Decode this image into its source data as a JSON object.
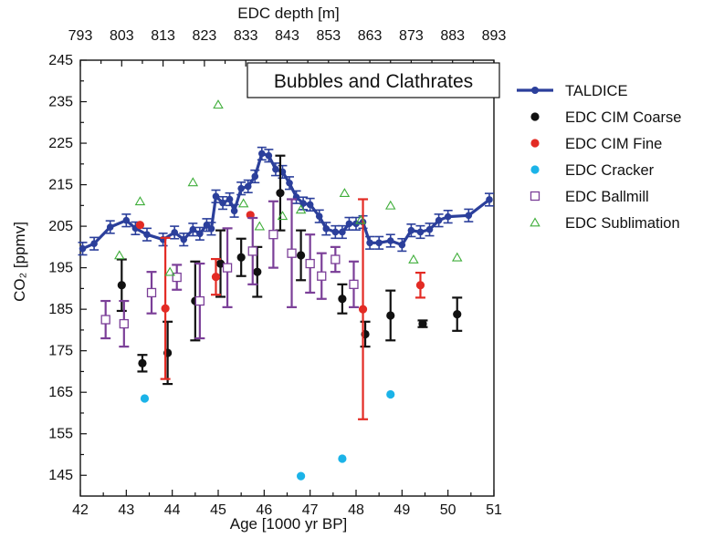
{
  "chart_data": {
    "type": "scatter",
    "title": "Bubbles and Clathrates",
    "xlabel": "Age [1000 yr BP]",
    "ylabel": "CO₂ [ppmv]",
    "x2label": "EDC depth [m]",
    "xlim": [
      42,
      51
    ],
    "ylim": [
      140,
      245
    ],
    "x_ticks": [
      "42",
      "43",
      "44",
      "45",
      "46",
      "47",
      "48",
      "49",
      "50",
      "51"
    ],
    "y_ticks": [
      "145",
      "155",
      "165",
      "175",
      "185",
      "195",
      "205",
      "215",
      "225",
      "235",
      "245"
    ],
    "x2_ticks": [
      "793",
      "803",
      "813",
      "823",
      "833",
      "843",
      "853",
      "863",
      "873",
      "883",
      "893"
    ],
    "legend_position": "right, outside",
    "series": [
      {
        "name": "TALDICE",
        "marker": "line-circle",
        "color": "#2b3f9b",
        "points": [
          [
            42.05,
            199.6,
            1.5
          ],
          [
            42.3,
            200.8,
            1.5
          ],
          [
            42.65,
            204.8,
            1.5
          ],
          [
            43.0,
            206.4,
            1.5
          ],
          [
            43.2,
            204.5,
            1.5
          ],
          [
            43.45,
            203.0,
            1.5
          ],
          [
            43.8,
            201.8,
            1.5
          ],
          [
            44.05,
            203.5,
            1.5
          ],
          [
            44.25,
            201.8,
            1.5
          ],
          [
            44.45,
            204.2,
            1.5
          ],
          [
            44.6,
            203.2,
            1.5
          ],
          [
            44.75,
            205.3,
            1.5
          ],
          [
            44.85,
            204.4,
            1.5
          ],
          [
            44.95,
            212.2,
            1.5
          ],
          [
            45.1,
            210.6,
            1.5
          ],
          [
            45.25,
            211.5,
            1.5
          ],
          [
            45.35,
            208.7,
            1.5
          ],
          [
            45.5,
            214.1,
            1.5
          ],
          [
            45.65,
            214.6,
            1.5
          ],
          [
            45.8,
            217.0,
            1.5
          ],
          [
            45.95,
            222.5,
            1.5
          ],
          [
            46.1,
            222.0,
            1.5
          ],
          [
            46.25,
            218.7,
            1.5
          ],
          [
            46.4,
            218.1,
            1.5
          ],
          [
            46.55,
            215.4,
            1.5
          ],
          [
            46.7,
            212.0,
            1.5
          ],
          [
            46.85,
            210.5,
            1.5
          ],
          [
            47.0,
            210.2,
            1.5
          ],
          [
            47.2,
            207.4,
            1.5
          ],
          [
            47.35,
            204.4,
            1.5
          ],
          [
            47.55,
            203.6,
            1.5
          ],
          [
            47.7,
            203.6,
            1.5
          ],
          [
            47.85,
            205.6,
            1.5
          ],
          [
            48.0,
            205.6,
            1.5
          ],
          [
            48.15,
            206.0,
            1.5
          ],
          [
            48.3,
            201.0,
            1.5
          ],
          [
            48.5,
            201.0,
            1.5
          ],
          [
            48.75,
            201.5,
            1.5
          ],
          [
            49.0,
            200.5,
            1.5
          ],
          [
            49.2,
            204.0,
            1.5
          ],
          [
            49.4,
            203.6,
            1.5
          ],
          [
            49.6,
            204.2,
            1.5
          ],
          [
            49.8,
            206.4,
            1.5
          ],
          [
            50.0,
            207.3,
            1.5
          ],
          [
            50.45,
            207.6,
            1.5
          ],
          [
            50.9,
            211.4,
            1.5
          ]
        ]
      },
      {
        "name": "EDC CIM Coarse",
        "marker": "circle",
        "color": "#111111",
        "points": [
          [
            42.9,
            190.8,
            6.2
          ],
          [
            43.35,
            172.0,
            2.0
          ],
          [
            43.9,
            174.5,
            7.5
          ],
          [
            44.5,
            187.0,
            9.5
          ],
          [
            45.05,
            196.0,
            8.0
          ],
          [
            45.5,
            197.5,
            4.5
          ],
          [
            45.85,
            194.0,
            6.0
          ],
          [
            46.35,
            213.0,
            9.0
          ],
          [
            46.8,
            198.0,
            6.0
          ],
          [
            47.7,
            187.5,
            3.5
          ],
          [
            48.2,
            179.0,
            3.0
          ],
          [
            48.75,
            183.5,
            6.0
          ],
          [
            49.45,
            181.5,
            0.8
          ],
          [
            50.2,
            183.8,
            4.0
          ]
        ]
      },
      {
        "name": "EDC CIM Fine",
        "marker": "circle",
        "color": "#e32b24",
        "points": [
          [
            43.3,
            205.3,
            0
          ],
          [
            43.85,
            185.2,
            17.0
          ],
          [
            44.95,
            192.8,
            4.3
          ],
          [
            45.7,
            207.7,
            0
          ],
          [
            48.15,
            185.0,
            26.5
          ],
          [
            49.4,
            190.8,
            3.0
          ]
        ]
      },
      {
        "name": "EDC Cracker",
        "marker": "circle",
        "color": "#1bb3e8",
        "points": [
          [
            43.4,
            163.5,
            0
          ],
          [
            46.8,
            144.8,
            0
          ],
          [
            47.7,
            149.0,
            0
          ],
          [
            48.75,
            164.5,
            0
          ]
        ]
      },
      {
        "name": "EDC Ballmill",
        "marker": "open-square",
        "color": "#7b3f98",
        "points": [
          [
            42.55,
            182.5,
            4.5
          ],
          [
            42.95,
            181.5,
            5.5
          ],
          [
            43.55,
            189.0,
            5.0
          ],
          [
            44.1,
            192.7,
            3.0
          ],
          [
            44.6,
            187.0,
            9.0
          ],
          [
            45.2,
            195.0,
            9.5
          ],
          [
            45.75,
            199.0,
            8.0
          ],
          [
            46.2,
            203.0,
            8.0
          ],
          [
            46.6,
            198.5,
            13.0
          ],
          [
            47.0,
            196.0,
            7.0
          ],
          [
            47.25,
            193.0,
            5.5
          ],
          [
            47.55,
            197.0,
            3.0
          ],
          [
            47.95,
            191.0,
            5.5
          ]
        ]
      },
      {
        "name": "EDC Sublimation",
        "marker": "open-triangle",
        "color": "#3fae3a",
        "points": [
          [
            42.85,
            198.0,
            0
          ],
          [
            43.3,
            211.0,
            0
          ],
          [
            43.95,
            194.0,
            0
          ],
          [
            44.45,
            215.6,
            0
          ],
          [
            45.0,
            234.3,
            0
          ],
          [
            45.55,
            210.5,
            0
          ],
          [
            45.9,
            205.0,
            0
          ],
          [
            46.4,
            207.5,
            0
          ],
          [
            46.8,
            209.0,
            0
          ],
          [
            47.75,
            213.0,
            0
          ],
          [
            48.1,
            206.5,
            0
          ],
          [
            48.75,
            210.0,
            0
          ],
          [
            49.25,
            197.0,
            0
          ],
          [
            50.2,
            197.5,
            0
          ]
        ]
      }
    ]
  }
}
